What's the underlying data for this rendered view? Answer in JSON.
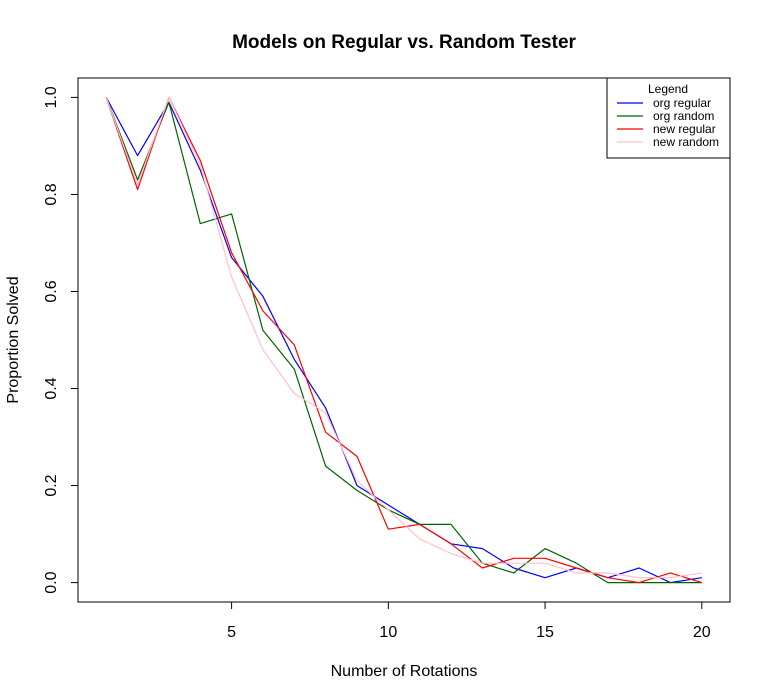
{
  "chart_data": {
    "type": "line",
    "title": "Models on Regular vs. Random Tester",
    "xlabel": "Number of Rotations",
    "ylabel": "Proportion Solved",
    "xlim": [
      0.1,
      20.9
    ],
    "ylim": [
      -0.04,
      1.04
    ],
    "x_ticks": [
      5,
      10,
      15,
      20
    ],
    "y_ticks": [
      0.0,
      0.2,
      0.4,
      0.6,
      0.8,
      1.0
    ],
    "y_tick_labels": [
      "0.0",
      "0.2",
      "0.4",
      "0.6",
      "0.8",
      "1.0"
    ],
    "x": [
      1,
      2,
      3,
      4,
      5,
      6,
      7,
      8,
      9,
      10,
      11,
      12,
      13,
      14,
      15,
      16,
      17,
      18,
      19,
      20
    ],
    "grid": false,
    "legend_position": "top-right",
    "legend_title": "Legend",
    "series": [
      {
        "name": "org regular",
        "color": "#0000ff",
        "values": [
          1.0,
          0.88,
          0.99,
          0.85,
          0.67,
          0.59,
          0.46,
          0.36,
          0.2,
          0.16,
          0.12,
          0.08,
          0.07,
          0.03,
          0.01,
          0.03,
          0.01,
          0.03,
          0.0,
          0.01
        ]
      },
      {
        "name": "org random",
        "color": "#006400",
        "values": [
          1.0,
          0.83,
          0.99,
          0.74,
          0.76,
          0.52,
          0.44,
          0.24,
          0.19,
          0.15,
          0.12,
          0.12,
          0.04,
          0.02,
          0.07,
          0.04,
          0.0,
          0.0,
          0.0,
          0.0
        ]
      },
      {
        "name": "new regular",
        "color": "#ff0000",
        "values": [
          1.0,
          0.81,
          1.0,
          0.87,
          0.68,
          0.56,
          0.49,
          0.31,
          0.26,
          0.11,
          0.12,
          0.08,
          0.03,
          0.05,
          0.05,
          0.03,
          0.01,
          0.0,
          0.02,
          0.0
        ]
      },
      {
        "name": "new random",
        "color": "#ffc0cb",
        "values": [
          1.0,
          0.82,
          1.0,
          0.86,
          0.63,
          0.48,
          0.39,
          0.35,
          0.21,
          0.15,
          0.09,
          0.06,
          0.04,
          0.04,
          0.04,
          0.02,
          0.02,
          0.01,
          0.01,
          0.02
        ]
      }
    ]
  }
}
